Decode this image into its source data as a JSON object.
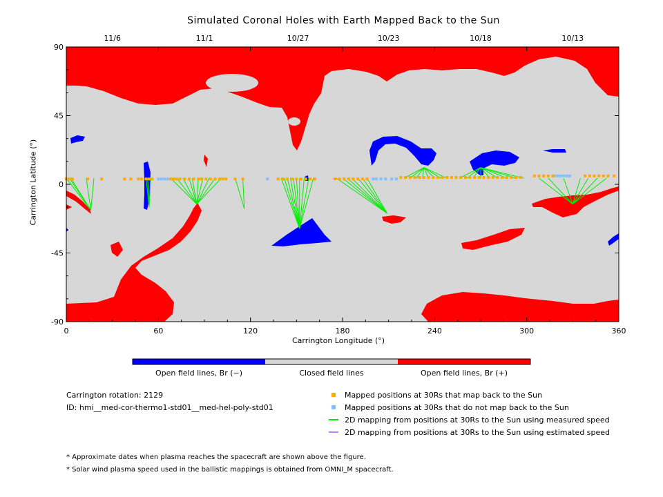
{
  "title": "Simulated Coronal Holes with Earth Mapped Back to the Sun",
  "chart_data": {
    "type": "scatter",
    "title": "Simulated Coronal Holes with Earth Mapped Back to the Sun",
    "xlabel": "Carrington Longitude (°)",
    "ylabel": "Carrington Latitude (°)",
    "xlim": [
      0,
      360
    ],
    "ylim": [
      -90,
      90
    ],
    "x_ticks": [
      "0",
      "60",
      "120",
      "180",
      "240",
      "300",
      "360"
    ],
    "x_tick_values": [
      0,
      60,
      120,
      180,
      240,
      300,
      360
    ],
    "y_ticks": [
      "90",
      "45",
      "0",
      "-45",
      "-90"
    ],
    "y_tick_values": [
      90,
      45,
      0,
      -45,
      -90
    ],
    "top_axis_dates": [
      "11/6",
      "11/1",
      "10/27",
      "10/23",
      "10/18",
      "10/13"
    ],
    "top_axis_positions": [
      30,
      90,
      151,
      210,
      270,
      330
    ],
    "colors": {
      "closed": "#d7d7d7",
      "open_positive": "#ff0000",
      "open_negative": "#0000ff",
      "mapped": "#ffaa00",
      "unmapped": "#80c0ff",
      "measured_line": "#00ee00",
      "estimated_line": "#c080ff"
    },
    "unmapped_points": [
      [
        60,
        3.5
      ],
      [
        62,
        3.5
      ],
      [
        64,
        3.5
      ],
      [
        66,
        3.5
      ],
      [
        131,
        3.5
      ],
      [
        200,
        3.5
      ],
      [
        202,
        3.5
      ],
      [
        205,
        3.5
      ],
      [
        208,
        3.5
      ],
      [
        212,
        3.5
      ],
      [
        215,
        3.5
      ],
      [
        318,
        5.5
      ],
      [
        320,
        5.5
      ],
      [
        322,
        5.5
      ],
      [
        324,
        5.5
      ],
      [
        326,
        5.5
      ],
      [
        328,
        5.5
      ]
    ],
    "mapping_groups": [
      {
        "src": [
          0,
          2,
          3,
          13,
          18
        ],
        "foot": [
          16,
          -17
        ]
      },
      {
        "src": [
          53,
          52,
          55
        ],
        "foot": [
          54,
          -15
        ]
      },
      {
        "src": [
          68,
          72,
          76,
          80,
          82,
          86,
          89,
          93,
          97,
          101
        ],
        "foot": [
          85,
          -13
        ]
      },
      {
        "src": [
          110,
          115
        ],
        "foot": [
          116,
          -16
        ]
      },
      {
        "src": [
          140,
          142,
          144,
          146,
          148,
          150,
          152,
          155,
          158,
          161
        ],
        "foot": [
          152,
          -29
        ]
      },
      {
        "src": [
          176,
          180,
          183,
          186,
          190,
          193,
          196
        ],
        "foot": [
          209,
          -19
        ]
      },
      {
        "src": [
          220,
          224,
          228,
          232,
          236,
          240,
          244,
          248
        ],
        "foot": [
          233,
          11
        ]
      },
      {
        "src": [
          256,
          261,
          265,
          270,
          276,
          281,
          287,
          293,
          298
        ],
        "foot": [
          270,
          11
        ]
      },
      {
        "src": [
          308,
          314,
          324,
          335,
          340,
          346,
          352
        ],
        "foot": [
          330,
          -13
        ]
      }
    ],
    "mapped_points": [
      [
        0,
        3.5
      ],
      [
        2,
        3.5
      ],
      [
        4,
        3.5
      ],
      [
        14,
        3.5
      ],
      [
        23,
        3.5
      ],
      [
        38,
        3.5
      ],
      [
        42,
        3.5
      ],
      [
        47,
        3.5
      ],
      [
        49,
        3.5
      ],
      [
        52,
        3.5
      ],
      [
        54,
        3.5
      ],
      [
        56,
        3.5
      ],
      [
        68,
        3.5
      ],
      [
        70,
        3.5
      ],
      [
        72,
        3.5
      ],
      [
        74,
        3.5
      ],
      [
        77,
        3.5
      ],
      [
        80,
        3.5
      ],
      [
        83,
        3.5
      ],
      [
        86,
        3.5
      ],
      [
        88,
        3.5
      ],
      [
        91,
        3.5
      ],
      [
        94,
        3.5
      ],
      [
        97,
        3.5
      ],
      [
        100,
        3.5
      ],
      [
        102,
        3.5
      ],
      [
        104,
        3.5
      ],
      [
        110,
        3.5
      ],
      [
        115,
        3.5
      ],
      [
        138,
        3.5
      ],
      [
        141,
        3.5
      ],
      [
        144,
        3.5
      ],
      [
        147,
        3.5
      ],
      [
        150,
        3.5
      ],
      [
        153,
        3.5
      ],
      [
        156,
        3.5
      ],
      [
        159,
        3.5
      ],
      [
        162,
        3.5
      ],
      [
        175,
        3.5
      ],
      [
        178,
        3.5
      ],
      [
        181,
        3.5
      ],
      [
        184,
        3.5
      ],
      [
        187,
        3.5
      ],
      [
        190,
        3.5
      ],
      [
        193,
        3.5
      ],
      [
        196,
        3.5
      ],
      [
        218,
        4.5
      ],
      [
        221,
        4.5
      ],
      [
        224,
        4.5
      ],
      [
        227,
        4.5
      ],
      [
        230,
        4.5
      ],
      [
        233,
        4.5
      ],
      [
        236,
        4.5
      ],
      [
        239,
        4.5
      ],
      [
        242,
        4.5
      ],
      [
        245,
        4.5
      ],
      [
        248,
        4.5
      ],
      [
        251,
        4.5
      ],
      [
        254,
        4.5
      ],
      [
        257,
        4.5
      ],
      [
        260,
        4.5
      ],
      [
        263,
        4.5
      ],
      [
        266,
        4.5
      ],
      [
        269,
        4.5
      ],
      [
        272,
        4.5
      ],
      [
        275,
        4.5
      ],
      [
        278,
        4.5
      ],
      [
        281,
        4.5
      ],
      [
        284,
        4.5
      ],
      [
        287,
        4.5
      ],
      [
        290,
        4.5
      ],
      [
        293,
        4.5
      ],
      [
        296,
        4.5
      ],
      [
        305,
        5.5
      ],
      [
        308,
        5.5
      ],
      [
        311,
        5.5
      ],
      [
        314,
        5.5
      ],
      [
        317,
        5.5
      ],
      [
        338,
        5.5
      ],
      [
        341,
        5.5
      ],
      [
        344,
        5.5
      ],
      [
        347,
        5.5
      ],
      [
        350,
        5.5
      ],
      [
        353,
        5.5
      ],
      [
        357,
        5.5
      ]
    ]
  },
  "colorbar": {
    "labels": [
      "Open field lines, Br (−)",
      "Closed field lines",
      "Open field lines, Br (+)"
    ]
  },
  "info": {
    "rotation": "Carrington rotation: 2129",
    "id": "ID: hmi__med-cor-thermo1-std01__med-hel-poly-std01"
  },
  "legend": {
    "mapped": "Mapped positions at 30Rs that map back to the Sun",
    "unmapped": "Mapped positions at 30Rs that do not map back to the Sun",
    "measured": "2D mapping from positions at 30Rs to the Sun using measured speed",
    "estimated": "2D mapping from positions at 30Rs to the Sun using estimated speed"
  },
  "notes": [
    "* Approximate dates when plasma reaches the spacecraft are shown above the figure.",
    "* Solar wind plasma speed used in the ballistic mappings is obtained from OMNI_M spacecraft."
  ]
}
